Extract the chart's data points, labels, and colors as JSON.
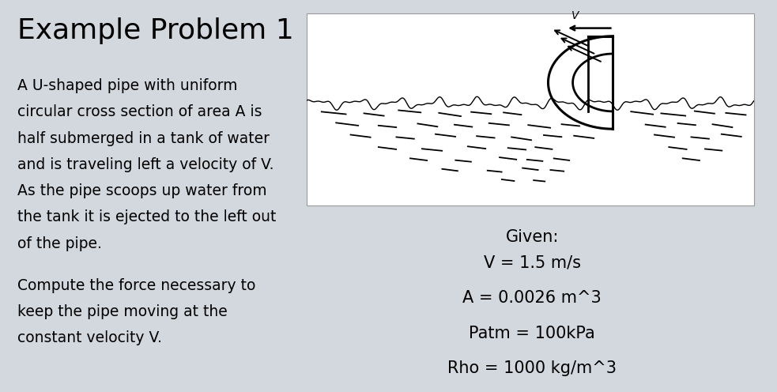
{
  "background_color": "#d3d7de",
  "title": "Example Problem 1",
  "title_fontsize": 26,
  "description_lines": [
    "A U-shaped pipe with uniform",
    "circular cross section of area A is",
    "half submerged in a tank of water",
    "and is traveling left a velocity of V.",
    "As the pipe scoops up water from",
    "the tank it is ejected to the left out",
    "of the pipe."
  ],
  "compute_lines": [
    "Compute the force necessary to",
    "keep the pipe moving at the",
    "constant velocity V."
  ],
  "given_label": "Given:",
  "given_values": [
    "V = 1.5 m/s",
    "A = 0.0026 m^3",
    "Patm = 100kPa",
    "Rho = 1000 kg/m^3"
  ],
  "text_fontsize": 13.5,
  "given_fontsize": 15,
  "diagram_bg": "#ffffff"
}
